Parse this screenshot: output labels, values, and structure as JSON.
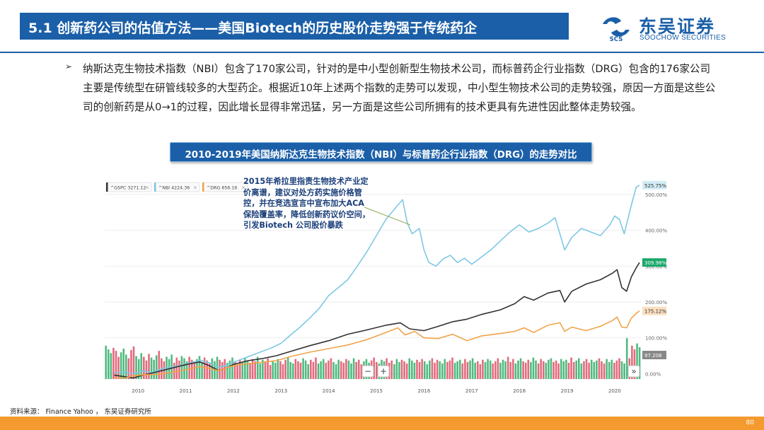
{
  "header": {
    "title": "5.1 创新药公司的估值方法——美国Biotech的历史股价走势强于传统药企",
    "logo_cn": "东吴证券",
    "logo_en": "SOOCHOW SECURITIES",
    "logo_mark": "SCS"
  },
  "body": {
    "bullet_icon": "➢",
    "bullet_text": "纳斯达克生物技术指数（NBI）包含了170家公司，针对的是中小型创新型生物技术公司，而标普药企行业指数（DRG）包含的176家公司主要是传统型在研管线较多的大型药企。根据近10年上述两个指数的走势可以发现，中小型生物技术公司的走势较强，原因一方面是这些公司的创新药是从0→1的过程，因此增长显得非常迅猛，另一方面是这些公司所拥有的技术更具有先进性因此整体走势较强。"
  },
  "chart_title": "2010-2019年美国纳斯达克生物技术指数（NBI）与标普药企行业指数（DRG）的走势对比",
  "annotation": "2015年希拉里指责生物技术产业定价离谱，建议对处方药实施价格管控，并在竞选宣言中宣布加大ACA保险覆盖率，降低创新药议价空间，引发Biotech 公司股价暴跌",
  "source": "资料来源： Finance Yahoo ， 东吴证券研究所",
  "page_number": "80",
  "chart_data": {
    "type": "line",
    "title": "2010-2019年美国纳斯达克生物技术指数（NBI）与标普药企行业指数（DRG）的走势对比",
    "x_tick_labels": [
      "2010",
      "2011",
      "2012",
      "2013",
      "2014",
      "2015",
      "2016",
      "2017",
      "2018",
      "2019",
      "2020"
    ],
    "y_tick_labels": [
      "0.00%",
      "100.00%",
      "200.00%",
      "300.00%",
      "400.00%",
      "500.00%"
    ],
    "ylim": [
      -15,
      545
    ],
    "xlim": [
      2009.3,
      2020.55
    ],
    "legend": [
      {
        "label": "^GSPC 3271.12",
        "color": "#333333"
      },
      {
        "label": "^NBI 4224.36",
        "color": "#7ec8e3"
      },
      {
        "label": "^DRG 656.16",
        "color": "#f0a44a"
      }
    ],
    "end_labels": [
      {
        "label": "525.75%",
        "value": 525.75,
        "color": "#7ec8e3"
      },
      {
        "label": "309.98%",
        "value": 309.98,
        "color": "#1aa86a"
      },
      {
        "label": "175.12%",
        "value": 175.12,
        "color": "#f0a44a"
      },
      {
        "label": "97.208",
        "value": 97.208,
        "color": "#888888"
      }
    ],
    "nav_labels": {
      "minus": "−",
      "plus": "+",
      "forward": "»"
    },
    "series": [
      {
        "name": "^NBI",
        "color": "#7ec8e3",
        "points": [
          [
            2009.5,
            2
          ],
          [
            2009.7,
            5
          ],
          [
            2009.9,
            0
          ],
          [
            2010.1,
            8
          ],
          [
            2010.3,
            3
          ],
          [
            2010.5,
            14
          ],
          [
            2010.7,
            18
          ],
          [
            2010.9,
            24
          ],
          [
            2011.1,
            30
          ],
          [
            2011.3,
            38
          ],
          [
            2011.5,
            30
          ],
          [
            2011.7,
            18
          ],
          [
            2011.9,
            25
          ],
          [
            2012.0,
            32
          ],
          [
            2012.2,
            42
          ],
          [
            2012.4,
            52
          ],
          [
            2012.6,
            62
          ],
          [
            2012.8,
            72
          ],
          [
            2013.0,
            85
          ],
          [
            2013.2,
            108
          ],
          [
            2013.4,
            130
          ],
          [
            2013.6,
            155
          ],
          [
            2013.8,
            182
          ],
          [
            2014.0,
            218
          ],
          [
            2014.2,
            240
          ],
          [
            2014.4,
            262
          ],
          [
            2014.6,
            300
          ],
          [
            2014.8,
            340
          ],
          [
            2015.0,
            385
          ],
          [
            2015.2,
            430
          ],
          [
            2015.45,
            470
          ],
          [
            2015.55,
            485
          ],
          [
            2015.65,
            420
          ],
          [
            2015.75,
            390
          ],
          [
            2015.9,
            405
          ],
          [
            2016.0,
            345
          ],
          [
            2016.1,
            310
          ],
          [
            2016.25,
            300
          ],
          [
            2016.4,
            320
          ],
          [
            2016.55,
            330
          ],
          [
            2016.7,
            310
          ],
          [
            2016.85,
            322
          ],
          [
            2017.0,
            305
          ],
          [
            2017.2,
            325
          ],
          [
            2017.4,
            345
          ],
          [
            2017.6,
            370
          ],
          [
            2017.8,
            395
          ],
          [
            2018.0,
            415
          ],
          [
            2018.2,
            395
          ],
          [
            2018.4,
            405
          ],
          [
            2018.6,
            420
          ],
          [
            2018.75,
            435
          ],
          [
            2018.95,
            345
          ],
          [
            2019.1,
            380
          ],
          [
            2019.3,
            405
          ],
          [
            2019.5,
            395
          ],
          [
            2019.7,
            385
          ],
          [
            2019.9,
            415
          ],
          [
            2020.0,
            440
          ],
          [
            2020.1,
            430
          ],
          [
            2020.2,
            390
          ],
          [
            2020.35,
            470
          ],
          [
            2020.45,
            520
          ],
          [
            2020.52,
            525.75
          ]
        ]
      },
      {
        "name": "^GSPC",
        "color": "#333333",
        "points": [
          [
            2009.5,
            -4
          ],
          [
            2009.7,
            -8
          ],
          [
            2009.9,
            -12
          ],
          [
            2010.1,
            -4
          ],
          [
            2010.3,
            2
          ],
          [
            2010.6,
            12
          ],
          [
            2010.9,
            22
          ],
          [
            2011.1,
            28
          ],
          [
            2011.3,
            33
          ],
          [
            2011.5,
            22
          ],
          [
            2011.7,
            8
          ],
          [
            2011.9,
            18
          ],
          [
            2012.0,
            26
          ],
          [
            2012.3,
            36
          ],
          [
            2012.6,
            42
          ],
          [
            2012.9,
            50
          ],
          [
            2013.2,
            62
          ],
          [
            2013.6,
            78
          ],
          [
            2014.0,
            92
          ],
          [
            2014.4,
            110
          ],
          [
            2014.8,
            122
          ],
          [
            2015.2,
            135
          ],
          [
            2015.5,
            142
          ],
          [
            2015.7,
            125
          ],
          [
            2016.0,
            120
          ],
          [
            2016.3,
            132
          ],
          [
            2016.6,
            145
          ],
          [
            2016.9,
            152
          ],
          [
            2017.2,
            165
          ],
          [
            2017.6,
            178
          ],
          [
            2017.9,
            195
          ],
          [
            2018.1,
            215
          ],
          [
            2018.3,
            205
          ],
          [
            2018.6,
            225
          ],
          [
            2018.85,
            232
          ],
          [
            2018.95,
            200
          ],
          [
            2019.1,
            230
          ],
          [
            2019.4,
            250
          ],
          [
            2019.7,
            262
          ],
          [
            2019.95,
            280
          ],
          [
            2020.05,
            290
          ],
          [
            2020.15,
            240
          ],
          [
            2020.25,
            230
          ],
          [
            2020.35,
            270
          ],
          [
            2020.45,
            295
          ],
          [
            2020.52,
            309.98
          ]
        ]
      },
      {
        "name": "^DRG",
        "color": "#f0a44a",
        "points": [
          [
            2009.5,
            -10
          ],
          [
            2009.7,
            -13
          ],
          [
            2009.9,
            -6
          ],
          [
            2010.1,
            -3
          ],
          [
            2010.4,
            -2
          ],
          [
            2010.7,
            4
          ],
          [
            2010.9,
            8
          ],
          [
            2011.1,
            14
          ],
          [
            2011.3,
            20
          ],
          [
            2011.5,
            15
          ],
          [
            2011.7,
            8
          ],
          [
            2011.9,
            18
          ],
          [
            2012.0,
            22
          ],
          [
            2012.3,
            28
          ],
          [
            2012.6,
            32
          ],
          [
            2012.9,
            36
          ],
          [
            2013.2,
            48
          ],
          [
            2013.6,
            60
          ],
          [
            2014.0,
            70
          ],
          [
            2014.4,
            80
          ],
          [
            2014.8,
            95
          ],
          [
            2015.2,
            115
          ],
          [
            2015.45,
            128
          ],
          [
            2015.6,
            108
          ],
          [
            2015.8,
            118
          ],
          [
            2016.0,
            100
          ],
          [
            2016.3,
            98
          ],
          [
            2016.6,
            110
          ],
          [
            2016.9,
            92
          ],
          [
            2017.2,
            105
          ],
          [
            2017.6,
            112
          ],
          [
            2017.9,
            118
          ],
          [
            2018.1,
            128
          ],
          [
            2018.3,
            115
          ],
          [
            2018.6,
            135
          ],
          [
            2018.85,
            142
          ],
          [
            2018.95,
            118
          ],
          [
            2019.1,
            130
          ],
          [
            2019.4,
            120
          ],
          [
            2019.7,
            132
          ],
          [
            2019.95,
            148
          ],
          [
            2020.05,
            158
          ],
          [
            2020.15,
            130
          ],
          [
            2020.25,
            128
          ],
          [
            2020.35,
            155
          ],
          [
            2020.45,
            168
          ],
          [
            2020.52,
            175.12
          ]
        ]
      }
    ],
    "volume_bars": [
      45,
      40,
      35,
      42,
      38,
      30,
      36,
      41,
      33,
      28,
      39,
      44,
      31,
      27,
      35,
      30,
      25,
      34,
      29,
      26,
      32,
      38,
      28,
      24,
      30,
      27,
      33,
      22,
      29,
      25,
      31,
      28,
      24,
      30,
      26,
      22,
      27,
      31,
      23,
      29,
      25,
      21,
      28,
      24,
      30,
      26,
      23,
      27,
      22,
      25,
      29,
      24,
      20,
      26,
      23,
      28,
      25,
      22,
      27,
      24,
      30,
      21,
      26,
      23,
      28,
      19,
      25,
      22,
      27,
      24,
      20,
      26,
      29,
      23,
      21,
      27,
      24,
      22,
      28,
      25,
      20,
      26,
      23,
      29,
      21,
      24,
      27,
      22,
      25,
      28,
      23,
      20,
      26,
      24,
      22,
      27,
      25,
      21,
      28,
      23,
      26,
      20,
      24,
      27,
      22,
      25,
      29,
      23,
      21,
      26,
      24,
      28,
      22,
      25,
      20,
      27,
      23,
      26,
      24,
      21,
      28,
      25,
      22,
      26,
      23,
      27,
      24,
      20,
      25,
      28,
      22,
      26,
      24,
      21,
      27,
      23,
      25,
      29,
      22,
      24,
      26,
      21,
      27,
      23,
      25,
      28,
      22,
      24,
      20,
      26,
      23,
      27,
      25,
      21,
      24,
      28,
      22,
      26,
      24,
      30,
      23,
      27,
      21,
      25,
      28,
      24,
      22,
      26,
      23,
      29,
      25,
      21,
      27,
      24,
      22,
      26,
      28,
      23,
      25,
      21,
      27,
      24,
      26,
      22,
      29,
      23,
      25,
      28,
      21,
      24,
      27,
      22,
      26,
      23,
      25,
      28,
      24,
      21,
      27,
      23,
      26,
      22,
      25,
      28,
      24,
      21,
      55,
      28,
      45,
      40,
      48,
      43
    ],
    "volume_colors": [
      "#3cb371",
      "#e05a6f"
    ]
  }
}
